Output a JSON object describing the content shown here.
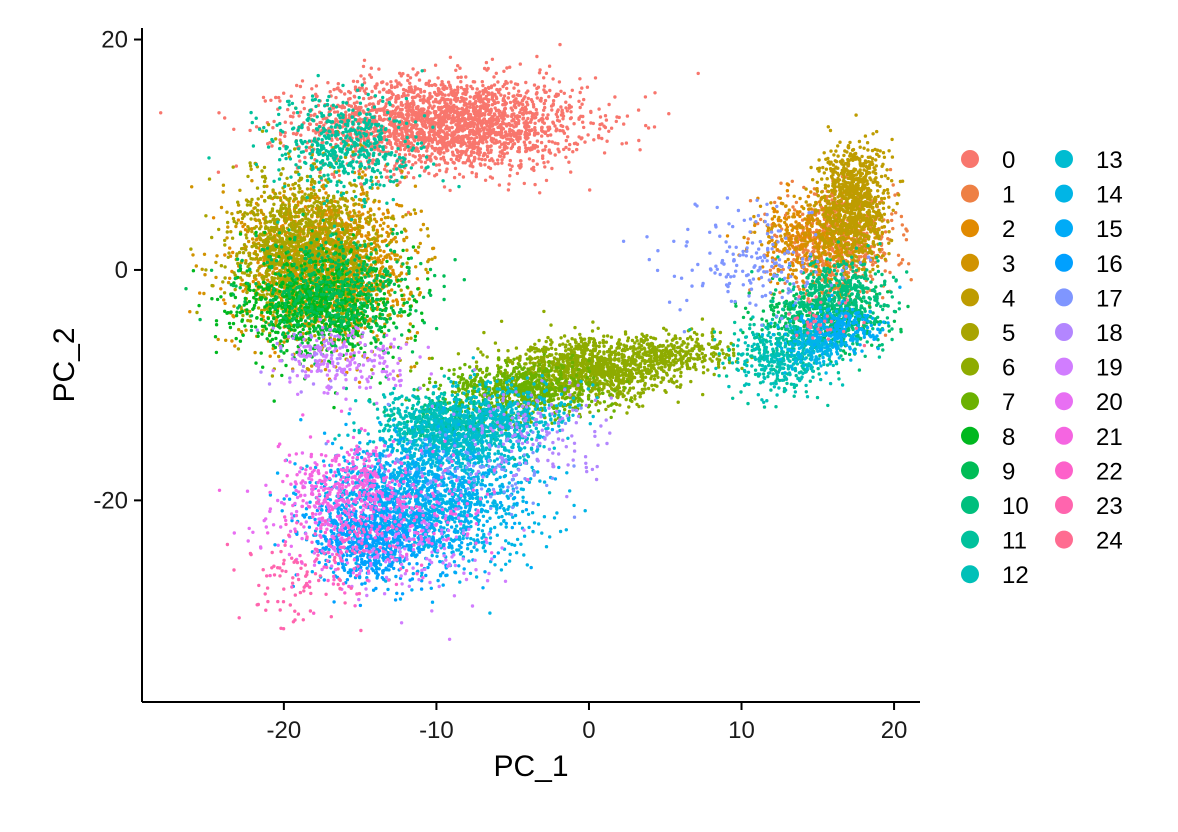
{
  "chart_data": {
    "type": "scatter",
    "title": "",
    "xlabel": "PC_1",
    "ylabel": "PC_2",
    "xlim": [
      -29.3,
      21.7
    ],
    "ylim": [
      -37.5,
      21.0
    ],
    "x_ticks": [
      -20,
      -10,
      0,
      10,
      20
    ],
    "y_ticks": [
      -20,
      0,
      20
    ],
    "x_tick_labels": [
      "-20",
      "-10",
      "0",
      "10",
      "20"
    ],
    "y_tick_labels": [
      "-20",
      "0",
      "20"
    ],
    "grid": false,
    "legend_position": "right",
    "legend_columns": 2,
    "point_style": "small dots",
    "series": [
      {
        "name": "0",
        "color": "#F8766D",
        "clusters": [
          {
            "x": -9.5,
            "y": 12.7,
            "sx": 4.6,
            "sy": 2.0,
            "n": 2400
          }
        ]
      },
      {
        "name": "1",
        "color": "#EE8044",
        "clusters": [
          {
            "x": 16.3,
            "y": 2.2,
            "sx": 1.9,
            "sy": 2.3,
            "n": 700
          }
        ]
      },
      {
        "name": "2",
        "color": "#E18A00",
        "clusters": [
          {
            "x": -17.5,
            "y": 0.8,
            "sx": 2.4,
            "sy": 3.0,
            "n": 700
          },
          {
            "x": 14.0,
            "y": 2.5,
            "sx": 1.6,
            "sy": 1.8,
            "n": 250
          }
        ]
      },
      {
        "name": "3",
        "color": "#D19300",
        "clusters": [
          {
            "x": -17.0,
            "y": 0.3,
            "sx": 2.8,
            "sy": 3.2,
            "n": 900
          },
          {
            "x": 15.0,
            "y": 3.2,
            "sx": 1.7,
            "sy": 1.7,
            "n": 200
          }
        ]
      },
      {
        "name": "4",
        "color": "#BE9C00",
        "clusters": [
          {
            "x": 17.3,
            "y": 5.8,
            "sx": 1.1,
            "sy": 2.6,
            "n": 900
          },
          {
            "x": -18.2,
            "y": 1.2,
            "sx": 2.4,
            "sy": 3.4,
            "n": 400
          }
        ]
      },
      {
        "name": "5",
        "color": "#A8A400",
        "clusters": [
          {
            "x": -18.6,
            "y": 1.6,
            "sx": 2.3,
            "sy": 3.3,
            "n": 1100
          }
        ]
      },
      {
        "name": "6",
        "color": "#8EAB00",
        "clusters": [
          {
            "x": 0.3,
            "y": -8.6,
            "sx": 2.8,
            "sy": 1.3,
            "n": 1200
          },
          {
            "x": 6.0,
            "y": -7.2,
            "sx": 1.8,
            "sy": 0.9,
            "n": 250
          }
        ]
      },
      {
        "name": "7",
        "color": "#6BB100",
        "clusters": [
          {
            "x": -4.5,
            "y": -10.5,
            "sx": 2.4,
            "sy": 1.2,
            "n": 700
          }
        ]
      },
      {
        "name": "8",
        "color": "#00B81F",
        "clusters": [
          {
            "x": -17.8,
            "y": -3.2,
            "sx": 2.6,
            "sy": 2.2,
            "n": 800
          }
        ]
      },
      {
        "name": "9",
        "color": "#00BC56",
        "clusters": [
          {
            "x": -16.6,
            "y": -1.8,
            "sx": 2.8,
            "sy": 2.4,
            "n": 500
          },
          {
            "x": 14.8,
            "y": -4.2,
            "sx": 2.2,
            "sy": 1.3,
            "n": 300
          }
        ]
      },
      {
        "name": "10",
        "color": "#00BF7D",
        "clusters": [
          {
            "x": 16.5,
            "y": -2.8,
            "sx": 1.6,
            "sy": 1.9,
            "n": 600
          },
          {
            "x": -9.0,
            "y": -13.0,
            "sx": 2.0,
            "sy": 1.3,
            "n": 250
          }
        ]
      },
      {
        "name": "11",
        "color": "#00C19C",
        "clusters": [
          {
            "x": -16.0,
            "y": 10.5,
            "sx": 2.4,
            "sy": 2.2,
            "n": 500
          },
          {
            "x": 13.0,
            "y": -7.0,
            "sx": 1.8,
            "sy": 1.8,
            "n": 250
          }
        ]
      },
      {
        "name": "12",
        "color": "#00C0B8",
        "clusters": [
          {
            "x": -9.5,
            "y": -13.6,
            "sx": 2.4,
            "sy": 1.3,
            "n": 600
          },
          {
            "x": 12.5,
            "y": -8.0,
            "sx": 1.5,
            "sy": 1.4,
            "n": 200
          }
        ]
      },
      {
        "name": "13",
        "color": "#00BCD1",
        "clusters": [
          {
            "x": -8.0,
            "y": -15.0,
            "sx": 2.2,
            "sy": 1.6,
            "n": 400
          },
          {
            "x": -5.0,
            "y": -12.5,
            "sx": 2.0,
            "sy": 1.5,
            "n": 300
          }
        ]
      },
      {
        "name": "14",
        "color": "#00B5E6",
        "clusters": [
          {
            "x": -10.0,
            "y": -20.0,
            "sx": 3.4,
            "sy": 2.7,
            "n": 900
          },
          {
            "x": 15.0,
            "y": -6.5,
            "sx": 1.2,
            "sy": 1.0,
            "n": 180
          }
        ]
      },
      {
        "name": "15",
        "color": "#00ABF7",
        "clusters": [
          {
            "x": -12.5,
            "y": -20.5,
            "sx": 3.0,
            "sy": 2.8,
            "n": 900
          },
          {
            "x": 16.3,
            "y": -5.0,
            "sx": 1.3,
            "sy": 1.1,
            "n": 220
          }
        ]
      },
      {
        "name": "16",
        "color": "#00A0FF",
        "clusters": [
          {
            "x": -14.5,
            "y": -23.5,
            "sx": 1.8,
            "sy": 1.8,
            "n": 500
          }
        ]
      },
      {
        "name": "17",
        "color": "#7F96FF",
        "clusters": [
          {
            "x": 10.5,
            "y": 0.5,
            "sx": 2.8,
            "sy": 2.5,
            "n": 180
          },
          {
            "x": -8.0,
            "y": -17.5,
            "sx": 3.0,
            "sy": 2.2,
            "n": 120
          }
        ]
      },
      {
        "name": "18",
        "color": "#B386FF",
        "clusters": [
          {
            "x": -3.5,
            "y": -14.0,
            "sx": 2.5,
            "sy": 2.0,
            "n": 150
          },
          {
            "x": -18.0,
            "y": -7.5,
            "sx": 2.0,
            "sy": 1.5,
            "n": 60
          }
        ]
      },
      {
        "name": "19",
        "color": "#D17DFF",
        "clusters": [
          {
            "x": -15.5,
            "y": -8.0,
            "sx": 2.2,
            "sy": 1.5,
            "n": 180
          },
          {
            "x": -11.0,
            "y": -25.0,
            "sx": 2.5,
            "sy": 2.0,
            "n": 120
          }
        ]
      },
      {
        "name": "20",
        "color": "#E86FF3",
        "clusters": [
          {
            "x": -17.5,
            "y": -22.0,
            "sx": 2.2,
            "sy": 2.4,
            "n": 140
          }
        ]
      },
      {
        "name": "21",
        "color": "#F565E1",
        "clusters": [
          {
            "x": -16.0,
            "y": -18.5,
            "sx": 2.0,
            "sy": 2.0,
            "n": 300
          },
          {
            "x": -11.5,
            "y": -21.5,
            "sx": 2.5,
            "sy": 2.3,
            "n": 140
          }
        ]
      },
      {
        "name": "22",
        "color": "#FD61CA",
        "clusters": [
          {
            "x": -16.0,
            "y": -24.0,
            "sx": 2.2,
            "sy": 2.2,
            "n": 120
          }
        ]
      },
      {
        "name": "23",
        "color": "#FF65AE",
        "clusters": [
          {
            "x": -19.5,
            "y": -27.5,
            "sx": 1.8,
            "sy": 2.0,
            "n": 80
          }
        ]
      },
      {
        "name": "24",
        "color": "#FF6C91",
        "clusters": [
          {
            "x": 15.0,
            "y": -4.5,
            "sx": 1.5,
            "sy": 1.2,
            "n": 40
          }
        ]
      }
    ]
  }
}
